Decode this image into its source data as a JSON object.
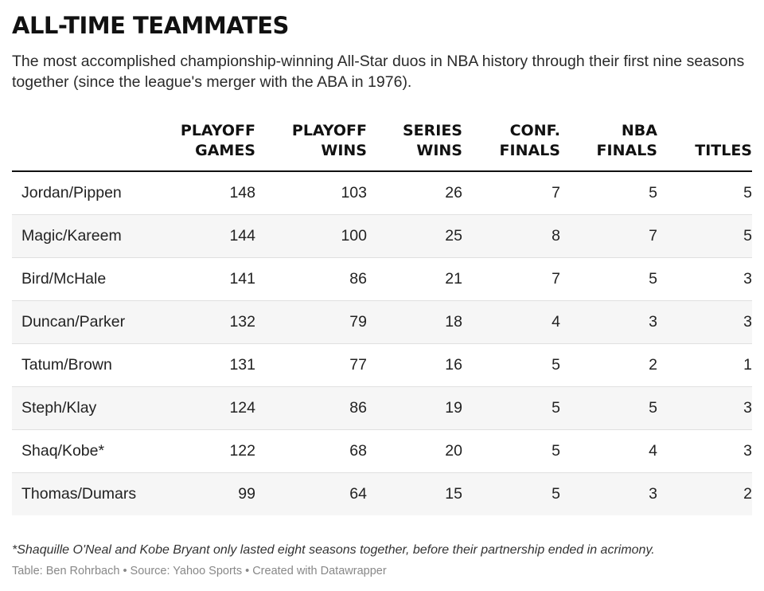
{
  "title": "ALL-TIME TEAMMATES",
  "subtitle": "The most accomplished championship-winning All-Star duos in NBA history through their first nine seasons together (since the league's merger with the ABA in 1976).",
  "chart_data": {
    "type": "table",
    "columns": [
      {
        "key": "duo",
        "lines": [
          "",
          ""
        ]
      },
      {
        "key": "playoff_games",
        "lines": [
          "PLAYOFF",
          "GAMES"
        ]
      },
      {
        "key": "playoff_wins",
        "lines": [
          "PLAYOFF",
          "WINS"
        ]
      },
      {
        "key": "series_wins",
        "lines": [
          "SERIES",
          "WINS"
        ]
      },
      {
        "key": "conf_finals",
        "lines": [
          "CONF.",
          "FINALS"
        ]
      },
      {
        "key": "nba_finals",
        "lines": [
          "NBA",
          "FINALS"
        ]
      },
      {
        "key": "titles",
        "lines": [
          "",
          "TITLES"
        ]
      }
    ],
    "rows": [
      [
        "Jordan/Pippen",
        "148",
        "103",
        "26",
        "7",
        "5",
        "5"
      ],
      [
        "Magic/Kareem",
        "144",
        "100",
        "25",
        "8",
        "7",
        "5"
      ],
      [
        "Bird/McHale",
        "141",
        "86",
        "21",
        "7",
        "5",
        "3"
      ],
      [
        "Duncan/Parker",
        "132",
        "79",
        "18",
        "4",
        "3",
        "3"
      ],
      [
        "Tatum/Brown",
        "131",
        "77",
        "16",
        "5",
        "2",
        "1"
      ],
      [
        "Steph/Klay",
        "124",
        "86",
        "19",
        "5",
        "5",
        "3"
      ],
      [
        "Shaq/Kobe*",
        "122",
        "68",
        "20",
        "5",
        "4",
        "3"
      ],
      [
        "Thomas/Dumars",
        "99",
        "64",
        "15",
        "5",
        "3",
        "2"
      ]
    ]
  },
  "footnote": "*Shaquille O'Neal and Kobe Bryant only lasted eight seasons together, before their partnership ended in acrimony.",
  "credits": "Table: Ben Rohrbach • Source: Yahoo Sports • Created with Datawrapper"
}
